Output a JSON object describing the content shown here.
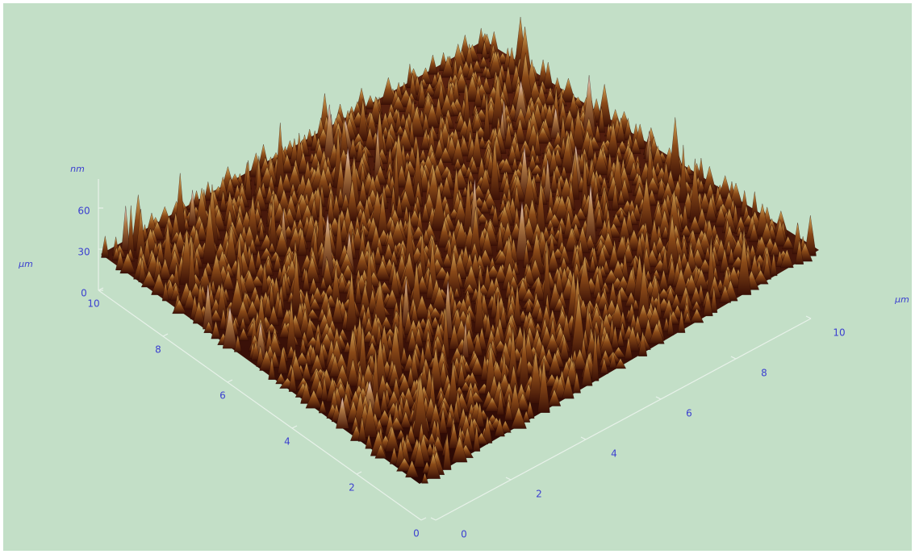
{
  "z_axis": {
    "unit": "nm",
    "ticks": [
      0,
      30,
      60
    ]
  },
  "left_axis": {
    "unit": "µm",
    "ticks": [
      0,
      2,
      4,
      6,
      8,
      10
    ]
  },
  "right_axis": {
    "unit": "µm",
    "ticks": [
      0,
      2,
      4,
      6,
      8,
      10
    ]
  }
}
